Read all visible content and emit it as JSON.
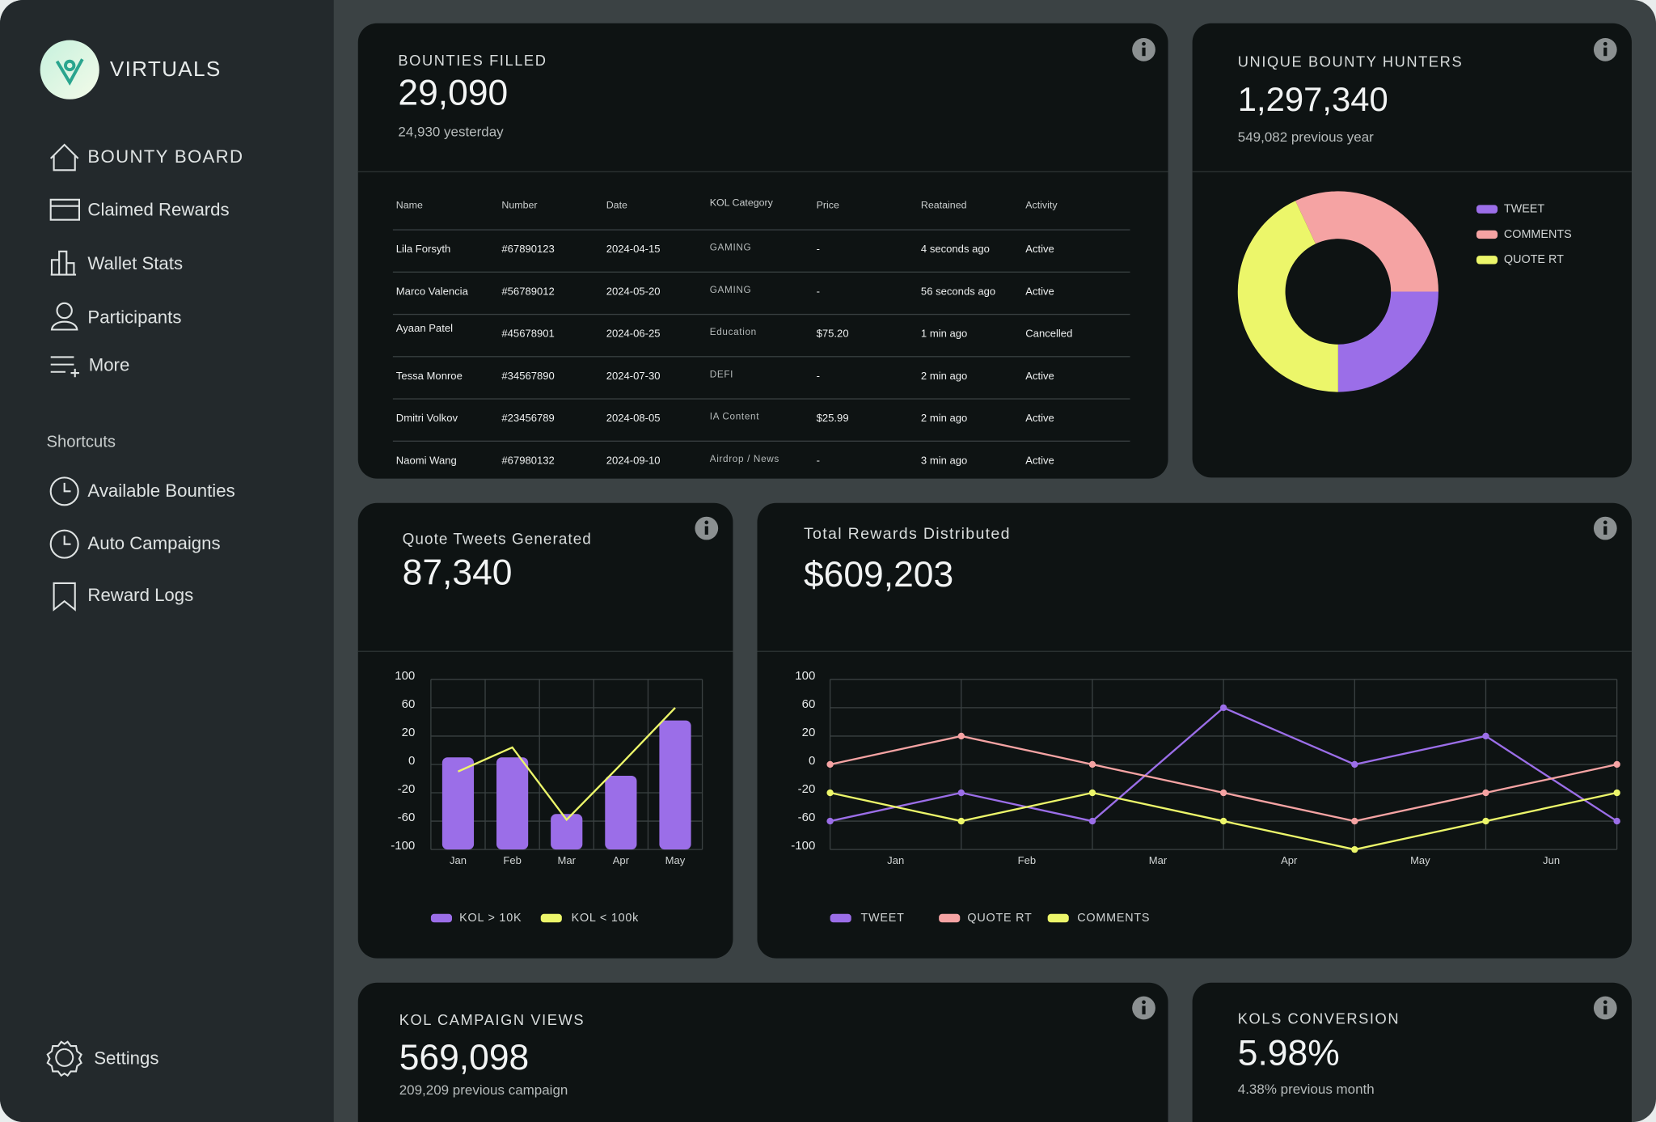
{
  "sidebar": {
    "brand": "VIRTUALS",
    "nav": [
      "BOUNTY BOARD",
      "Claimed Rewards",
      "Wallet Stats",
      "Participants",
      "More"
    ],
    "shortcuts_title": "Shortcuts",
    "shortcuts": [
      "Available Bounties",
      "Auto Campaigns",
      "Reward Logs"
    ],
    "settings": "Settings"
  },
  "cards": {
    "bounties_filled": {
      "title": "BOUNTIES FILLED",
      "value": "29,090",
      "sub": "24,930 yesterday"
    },
    "unique_hunters": {
      "title": "UNIQUE BOUNTY HUNTERS",
      "value": "1,297,340",
      "sub": "549,082 previous year"
    },
    "quote_tweets": {
      "title": "Quote Tweets Generated",
      "value": "87,340"
    },
    "total_rewards": {
      "title": "Total Rewards Distributed",
      "value": "$609,203"
    },
    "campaign_views": {
      "title": "KOL CAMPAIGN VIEWS",
      "value": "569,098",
      "sub": "209,209 previous campaign"
    },
    "conversion": {
      "title": "KOLS CONVERSION",
      "value": "5.98%",
      "sub": "4.38% previous month"
    }
  },
  "table": {
    "headers": [
      "Name",
      "Number",
      "Date",
      "KOL Category",
      "Price",
      "Reatained",
      "Activity"
    ],
    "rows": [
      [
        "Lila Forsyth",
        "#67890123",
        "2024-04-15",
        "GAMING",
        "-",
        "4 seconds ago",
        "Active"
      ],
      [
        "Marco Valencia",
        "#56789012",
        "2024-05-20",
        "GAMING",
        "-",
        "56 seconds ago",
        "Active"
      ],
      [
        "Ayaan Patel",
        "#45678901",
        "2024-06-25",
        "Education",
        "$75.20",
        "1 min ago",
        "Cancelled"
      ],
      [
        "Tessa Monroe",
        "#34567890",
        "2024-07-30",
        "DEFI",
        "-",
        "2 min ago",
        "Active"
      ],
      [
        "Dmitri Volkov",
        "#23456789",
        "2024-08-05",
        "IA Content",
        "$25.99",
        "2 min ago",
        "Active"
      ],
      [
        "Naomi Wang",
        "#67980132",
        "2024-09-10",
        "Airdrop / News",
        "-",
        "3 min ago",
        "Active"
      ]
    ]
  },
  "chart_data": [
    {
      "type": "pie",
      "donut": true,
      "categories": [
        "TWEET",
        "COMMENTS",
        "QUOTE RT"
      ],
      "values": [
        25,
        32,
        43
      ],
      "colors": [
        "#9b6ee8",
        "#f5a3a3",
        "#ecf66a"
      ],
      "start": "bottom",
      "direction": "counterclockwise",
      "legend": "right"
    },
    {
      "type": "bar-line",
      "categories": [
        "Jan",
        "Feb",
        "Mar",
        "Apr",
        "May"
      ],
      "series": [
        {
          "name": "KOL > 10K",
          "color": "#9b6ee8",
          "kind": "bar",
          "values": [
            5,
            5,
            -50,
            -8,
            42
          ]
        },
        {
          "name": "KOL < 100k",
          "color": "#ecf66a",
          "kind": "line",
          "values": [
            -5,
            12,
            -58,
            0,
            60
          ]
        }
      ],
      "ylim": [
        -100,
        100
      ],
      "yticks": [
        100,
        60,
        20,
        0,
        -20,
        -60,
        -100
      ],
      "grid": true,
      "legend": "bottom"
    },
    {
      "type": "line",
      "x": [
        0,
        1,
        2,
        3,
        4,
        5,
        6
      ],
      "xlim": [
        0,
        6
      ],
      "xticks": [
        {
          "value": 0.5,
          "label": "Jan"
        },
        {
          "value": 1.5,
          "label": "Feb"
        },
        {
          "value": 2.5,
          "label": "Mar"
        },
        {
          "value": 3.5,
          "label": "Apr"
        },
        {
          "value": 4.5,
          "label": "May"
        },
        {
          "value": 5.5,
          "label": "Jun"
        }
      ],
      "series": [
        {
          "name": "TWEET",
          "color": "#9b6ee8",
          "values": [
            -60,
            -20,
            -60,
            60,
            0,
            20,
            -60
          ]
        },
        {
          "name": "QUOTE RT",
          "color": "#f5a3a3",
          "values": [
            0,
            20,
            0,
            -20,
            -60,
            -20,
            0
          ]
        },
        {
          "name": "COMMENTS",
          "color": "#ecf66a",
          "values": [
            -20,
            -60,
            -20,
            -60,
            -100,
            -60,
            -20
          ]
        }
      ],
      "ylim": [
        -100,
        100
      ],
      "yticks": [
        100,
        60,
        20,
        0,
        -20,
        -60,
        -100
      ],
      "grid": true,
      "legend": "bottom"
    }
  ]
}
